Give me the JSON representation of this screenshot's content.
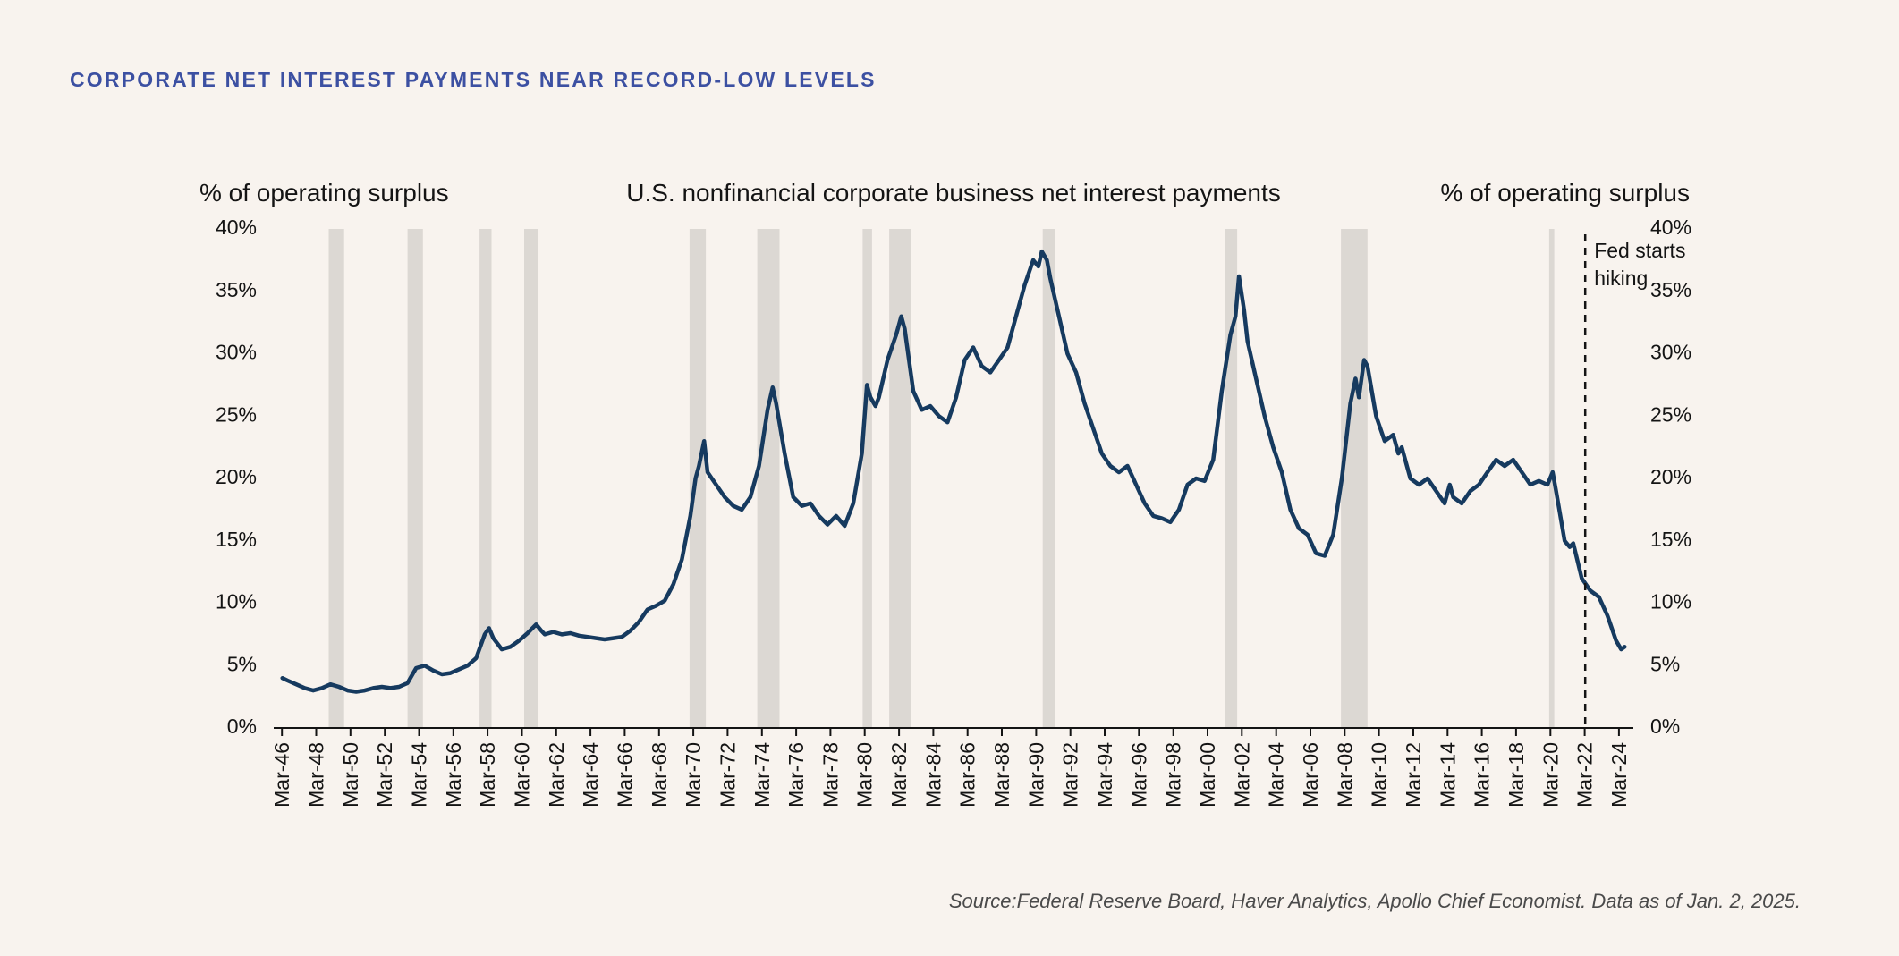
{
  "page": {
    "title": "CORPORATE NET INTEREST PAYMENTS NEAR RECORD-LOW LEVELS",
    "source": "Source:Federal Reserve Board, Haver Analytics, Apollo Chief Economist. Data as of Jan. 2, 2025."
  },
  "colors": {
    "background": "#f8f3ee",
    "title_blue": "#3c50a2",
    "line": "#163a5f",
    "recession_band": "#dcd8d3",
    "axis": "#141414"
  },
  "chart_data": {
    "type": "line",
    "title": "U.S. nonfinancial corporate business net interest payments",
    "ylabel_left": "% of operating surplus",
    "ylabel_right": "% of operating surplus",
    "xlabel": "",
    "grid": false,
    "legend": "none",
    "ylim": [
      0,
      40
    ],
    "ytick_values": [
      0,
      5,
      10,
      15,
      20,
      25,
      30,
      35,
      40
    ],
    "ytick_labels": [
      "0%",
      "5%",
      "10%",
      "15%",
      "20%",
      "25%",
      "30%",
      "35%",
      "40%"
    ],
    "x_range": [
      1945.9,
      2024.8
    ],
    "xtick_labels": [
      "Mar-46",
      "Mar-48",
      "Mar-50",
      "Mar-52",
      "Mar-54",
      "Mar-56",
      "Mar-58",
      "Mar-60",
      "Mar-62",
      "Mar-64",
      "Mar-66",
      "Mar-68",
      "Mar-70",
      "Mar-72",
      "Mar-74",
      "Mar-76",
      "Mar-78",
      "Mar-80",
      "Mar-82",
      "Mar-84",
      "Mar-86",
      "Mar-88",
      "Mar-90",
      "Mar-92",
      "Mar-94",
      "Mar-96",
      "Mar-98",
      "Mar-00",
      "Mar-02",
      "Mar-04",
      "Mar-06",
      "Mar-08",
      "Mar-10",
      "Mar-12",
      "Mar-14",
      "Mar-16",
      "Mar-18",
      "Mar-20",
      "Mar-22",
      "Mar-24"
    ],
    "xtick_years": [
      1946.17,
      1948.17,
      1950.17,
      1952.17,
      1954.17,
      1956.17,
      1958.17,
      1960.17,
      1962.17,
      1964.17,
      1966.17,
      1968.17,
      1970.17,
      1972.17,
      1974.17,
      1976.17,
      1978.17,
      1980.17,
      1982.17,
      1984.17,
      1986.17,
      1988.17,
      1990.17,
      1992.17,
      1994.17,
      1996.17,
      1998.17,
      2000.17,
      2002.17,
      2004.17,
      2006.17,
      2008.17,
      2010.17,
      2012.17,
      2014.17,
      2016.17,
      2018.17,
      2020.17,
      2022.17,
      2024.17
    ],
    "recessions": [
      [
        1948.9,
        1949.8
      ],
      [
        1953.5,
        1954.4
      ],
      [
        1957.7,
        1958.4
      ],
      [
        1960.3,
        1961.1
      ],
      [
        1969.95,
        1970.9
      ],
      [
        1973.9,
        1975.2
      ],
      [
        1980.05,
        1980.6
      ],
      [
        1981.6,
        1982.9
      ],
      [
        1990.55,
        1991.25
      ],
      [
        2001.2,
        2001.9
      ],
      [
        2007.95,
        2009.5
      ],
      [
        2020.1,
        2020.4
      ]
    ],
    "annotation": {
      "lines": [
        "Fed starts",
        "hiking"
      ],
      "x_year": 2022.2
    },
    "series": [
      {
        "name": "U.S. nonfinancial corporate business net interest payments (% of operating surplus)",
        "color": "#163a5f",
        "points": [
          [
            1946.2,
            4.0
          ],
          [
            1946.5,
            3.8
          ],
          [
            1947.0,
            3.5
          ],
          [
            1947.5,
            3.2
          ],
          [
            1948.0,
            3.0
          ],
          [
            1948.5,
            3.2
          ],
          [
            1949.0,
            3.5
          ],
          [
            1949.5,
            3.3
          ],
          [
            1950.0,
            3.0
          ],
          [
            1950.5,
            2.9
          ],
          [
            1951.0,
            3.0
          ],
          [
            1951.5,
            3.2
          ],
          [
            1952.0,
            3.3
          ],
          [
            1952.5,
            3.2
          ],
          [
            1953.0,
            3.3
          ],
          [
            1953.5,
            3.6
          ],
          [
            1954.0,
            4.8
          ],
          [
            1954.5,
            5.0
          ],
          [
            1955.0,
            4.6
          ],
          [
            1955.5,
            4.3
          ],
          [
            1956.0,
            4.4
          ],
          [
            1956.5,
            4.7
          ],
          [
            1957.0,
            5.0
          ],
          [
            1957.5,
            5.6
          ],
          [
            1958.0,
            7.5
          ],
          [
            1958.25,
            8.0
          ],
          [
            1958.5,
            7.2
          ],
          [
            1959.0,
            6.3
          ],
          [
            1959.5,
            6.5
          ],
          [
            1960.0,
            7.0
          ],
          [
            1960.5,
            7.6
          ],
          [
            1961.0,
            8.3
          ],
          [
            1961.3,
            7.8
          ],
          [
            1961.5,
            7.5
          ],
          [
            1962.0,
            7.7
          ],
          [
            1962.5,
            7.5
          ],
          [
            1963.0,
            7.6
          ],
          [
            1963.5,
            7.4
          ],
          [
            1964.0,
            7.3
          ],
          [
            1964.5,
            7.2
          ],
          [
            1965.0,
            7.1
          ],
          [
            1965.5,
            7.2
          ],
          [
            1966.0,
            7.3
          ],
          [
            1966.5,
            7.8
          ],
          [
            1967.0,
            8.5
          ],
          [
            1967.5,
            9.5
          ],
          [
            1968.0,
            9.8
          ],
          [
            1968.5,
            10.2
          ],
          [
            1969.0,
            11.5
          ],
          [
            1969.5,
            13.5
          ],
          [
            1970.0,
            17.0
          ],
          [
            1970.3,
            20.0
          ],
          [
            1970.5,
            21.0
          ],
          [
            1970.8,
            23.0
          ],
          [
            1971.0,
            20.5
          ],
          [
            1971.5,
            19.5
          ],
          [
            1972.0,
            18.5
          ],
          [
            1972.5,
            17.8
          ],
          [
            1973.0,
            17.5
          ],
          [
            1973.5,
            18.5
          ],
          [
            1974.0,
            21.0
          ],
          [
            1974.5,
            25.5
          ],
          [
            1974.8,
            27.3
          ],
          [
            1975.0,
            26.0
          ],
          [
            1975.5,
            22.0
          ],
          [
            1976.0,
            18.5
          ],
          [
            1976.5,
            17.8
          ],
          [
            1977.0,
            18.0
          ],
          [
            1977.5,
            17.0
          ],
          [
            1978.0,
            16.3
          ],
          [
            1978.5,
            17.0
          ],
          [
            1979.0,
            16.2
          ],
          [
            1979.5,
            18.0
          ],
          [
            1980.0,
            22.0
          ],
          [
            1980.3,
            27.5
          ],
          [
            1980.5,
            26.5
          ],
          [
            1980.8,
            25.8
          ],
          [
            1981.0,
            26.5
          ],
          [
            1981.5,
            29.5
          ],
          [
            1982.0,
            31.5
          ],
          [
            1982.3,
            33.0
          ],
          [
            1982.5,
            32.0
          ],
          [
            1983.0,
            27.0
          ],
          [
            1983.5,
            25.5
          ],
          [
            1984.0,
            25.8
          ],
          [
            1984.5,
            25.0
          ],
          [
            1985.0,
            24.5
          ],
          [
            1985.5,
            26.5
          ],
          [
            1986.0,
            29.5
          ],
          [
            1986.5,
            30.5
          ],
          [
            1987.0,
            29.0
          ],
          [
            1987.5,
            28.5
          ],
          [
            1988.0,
            29.5
          ],
          [
            1988.5,
            30.5
          ],
          [
            1989.0,
            33.0
          ],
          [
            1989.5,
            35.5
          ],
          [
            1990.0,
            37.5
          ],
          [
            1990.3,
            37.0
          ],
          [
            1990.5,
            38.2
          ],
          [
            1990.8,
            37.5
          ],
          [
            1991.0,
            36.0
          ],
          [
            1991.5,
            33.0
          ],
          [
            1992.0,
            30.0
          ],
          [
            1992.5,
            28.5
          ],
          [
            1993.0,
            26.0
          ],
          [
            1993.5,
            24.0
          ],
          [
            1994.0,
            22.0
          ],
          [
            1994.5,
            21.0
          ],
          [
            1995.0,
            20.5
          ],
          [
            1995.5,
            21.0
          ],
          [
            1996.0,
            19.5
          ],
          [
            1996.5,
            18.0
          ],
          [
            1997.0,
            17.0
          ],
          [
            1997.5,
            16.8
          ],
          [
            1998.0,
            16.5
          ],
          [
            1998.5,
            17.5
          ],
          [
            1999.0,
            19.5
          ],
          [
            1999.5,
            20.0
          ],
          [
            2000.0,
            19.8
          ],
          [
            2000.5,
            21.5
          ],
          [
            2001.0,
            27.0
          ],
          [
            2001.5,
            31.5
          ],
          [
            2001.8,
            33.0
          ],
          [
            2002.0,
            36.2
          ],
          [
            2002.3,
            33.5
          ],
          [
            2002.5,
            31.0
          ],
          [
            2003.0,
            28.0
          ],
          [
            2003.5,
            25.0
          ],
          [
            2004.0,
            22.5
          ],
          [
            2004.5,
            20.5
          ],
          [
            2005.0,
            17.5
          ],
          [
            2005.5,
            16.0
          ],
          [
            2006.0,
            15.5
          ],
          [
            2006.5,
            14.0
          ],
          [
            2007.0,
            13.8
          ],
          [
            2007.5,
            15.5
          ],
          [
            2008.0,
            20.0
          ],
          [
            2008.5,
            26.0
          ],
          [
            2008.8,
            28.0
          ],
          [
            2009.0,
            26.5
          ],
          [
            2009.3,
            29.5
          ],
          [
            2009.5,
            29.0
          ],
          [
            2010.0,
            25.0
          ],
          [
            2010.5,
            23.0
          ],
          [
            2011.0,
            23.5
          ],
          [
            2011.3,
            22.0
          ],
          [
            2011.5,
            22.5
          ],
          [
            2012.0,
            20.0
          ],
          [
            2012.5,
            19.5
          ],
          [
            2013.0,
            20.0
          ],
          [
            2013.5,
            19.0
          ],
          [
            2014.0,
            18.0
          ],
          [
            2014.3,
            19.5
          ],
          [
            2014.5,
            18.5
          ],
          [
            2015.0,
            18.0
          ],
          [
            2015.5,
            19.0
          ],
          [
            2016.0,
            19.5
          ],
          [
            2016.5,
            20.5
          ],
          [
            2017.0,
            21.5
          ],
          [
            2017.5,
            21.0
          ],
          [
            2018.0,
            21.5
          ],
          [
            2018.5,
            20.5
          ],
          [
            2019.0,
            19.5
          ],
          [
            2019.5,
            19.8
          ],
          [
            2020.0,
            19.5
          ],
          [
            2020.3,
            20.5
          ],
          [
            2020.5,
            19.0
          ],
          [
            2021.0,
            15.0
          ],
          [
            2021.3,
            14.5
          ],
          [
            2021.5,
            14.8
          ],
          [
            2022.0,
            12.0
          ],
          [
            2022.5,
            11.0
          ],
          [
            2023.0,
            10.5
          ],
          [
            2023.5,
            9.0
          ],
          [
            2024.0,
            7.0
          ],
          [
            2024.3,
            6.3
          ],
          [
            2024.5,
            6.5
          ]
        ]
      }
    ]
  }
}
